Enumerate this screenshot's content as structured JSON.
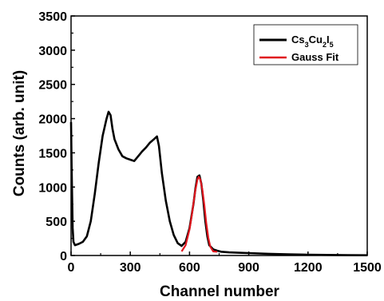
{
  "chart_data": {
    "type": "line",
    "xlabel": "Channel number",
    "ylabel": "Counts (arb. unit)",
    "xlim": [
      0,
      1500
    ],
    "ylim": [
      0,
      3500
    ],
    "xticks": [
      0,
      300,
      600,
      900,
      1200,
      1500
    ],
    "yticks": [
      0,
      500,
      1000,
      1500,
      2000,
      2500,
      3000,
      3500
    ],
    "xtick_labels": [
      "0",
      "300",
      "600",
      "900",
      "1200",
      "1500"
    ],
    "ytick_labels": [
      "0",
      "500",
      "1000",
      "1500",
      "2000",
      "2500",
      "3000",
      "3500"
    ],
    "grid": false,
    "legend_position": "top-right",
    "series": [
      {
        "name": "Cs3Cu2I5",
        "name_parts": [
          {
            "t": "Cs",
            "sub": false
          },
          {
            "t": "3",
            "sub": true
          },
          {
            "t": "Cu",
            "sub": false
          },
          {
            "t": "2",
            "sub": true
          },
          {
            "t": "I",
            "sub": false
          },
          {
            "t": "5",
            "sub": true
          }
        ],
        "color": "#000000",
        "x": [
          0,
          3,
          8,
          12,
          20,
          40,
          60,
          80,
          100,
          120,
          140,
          160,
          180,
          190,
          200,
          210,
          220,
          240,
          260,
          280,
          300,
          320,
          340,
          360,
          380,
          400,
          420,
          435,
          445,
          460,
          480,
          500,
          520,
          540,
          560,
          580,
          600,
          620,
          630,
          640,
          650,
          660,
          670,
          680,
          690,
          700,
          720,
          740,
          760,
          800,
          850,
          900,
          1000,
          1100,
          1200,
          1300,
          1400,
          1500
        ],
        "y": [
          1950,
          1300,
          400,
          200,
          150,
          170,
          200,
          280,
          500,
          900,
          1350,
          1750,
          2000,
          2100,
          2050,
          1850,
          1700,
          1550,
          1450,
          1420,
          1400,
          1380,
          1450,
          1520,
          1580,
          1650,
          1700,
          1740,
          1600,
          1200,
          800,
          500,
          300,
          180,
          140,
          200,
          400,
          750,
          980,
          1150,
          1170,
          1050,
          800,
          500,
          280,
          150,
          90,
          70,
          55,
          45,
          40,
          35,
          25,
          18,
          12,
          8,
          5,
          3
        ]
      },
      {
        "name": "Gauss Fit",
        "color": "#e0161e",
        "x": [
          560,
          580,
          600,
          610,
          620,
          630,
          640,
          647,
          655,
          665,
          675,
          685,
          695,
          705,
          720,
          740
        ],
        "y": [
          60,
          150,
          380,
          560,
          760,
          960,
          1110,
          1150,
          1110,
          960,
          730,
          470,
          260,
          130,
          60,
          55
        ]
      }
    ]
  }
}
